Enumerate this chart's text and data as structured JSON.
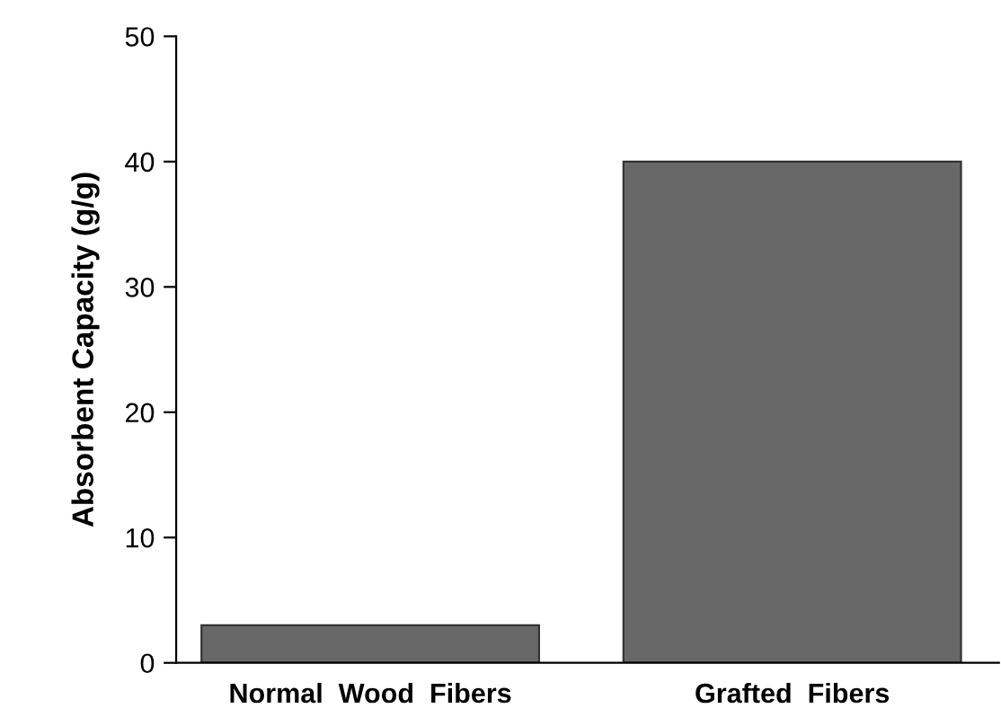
{
  "chart_data": {
    "type": "bar",
    "ylabel": "Absorbent Capacity (g/g)",
    "categories": [
      "Normal  Wood  Fibers",
      "Grafted  Fibers"
    ],
    "values": [
      3,
      40
    ],
    "color": "#686868",
    "ylim": [
      0,
      50
    ],
    "yticks": [
      0,
      10,
      20,
      30,
      40,
      50
    ],
    "grid": false
  }
}
